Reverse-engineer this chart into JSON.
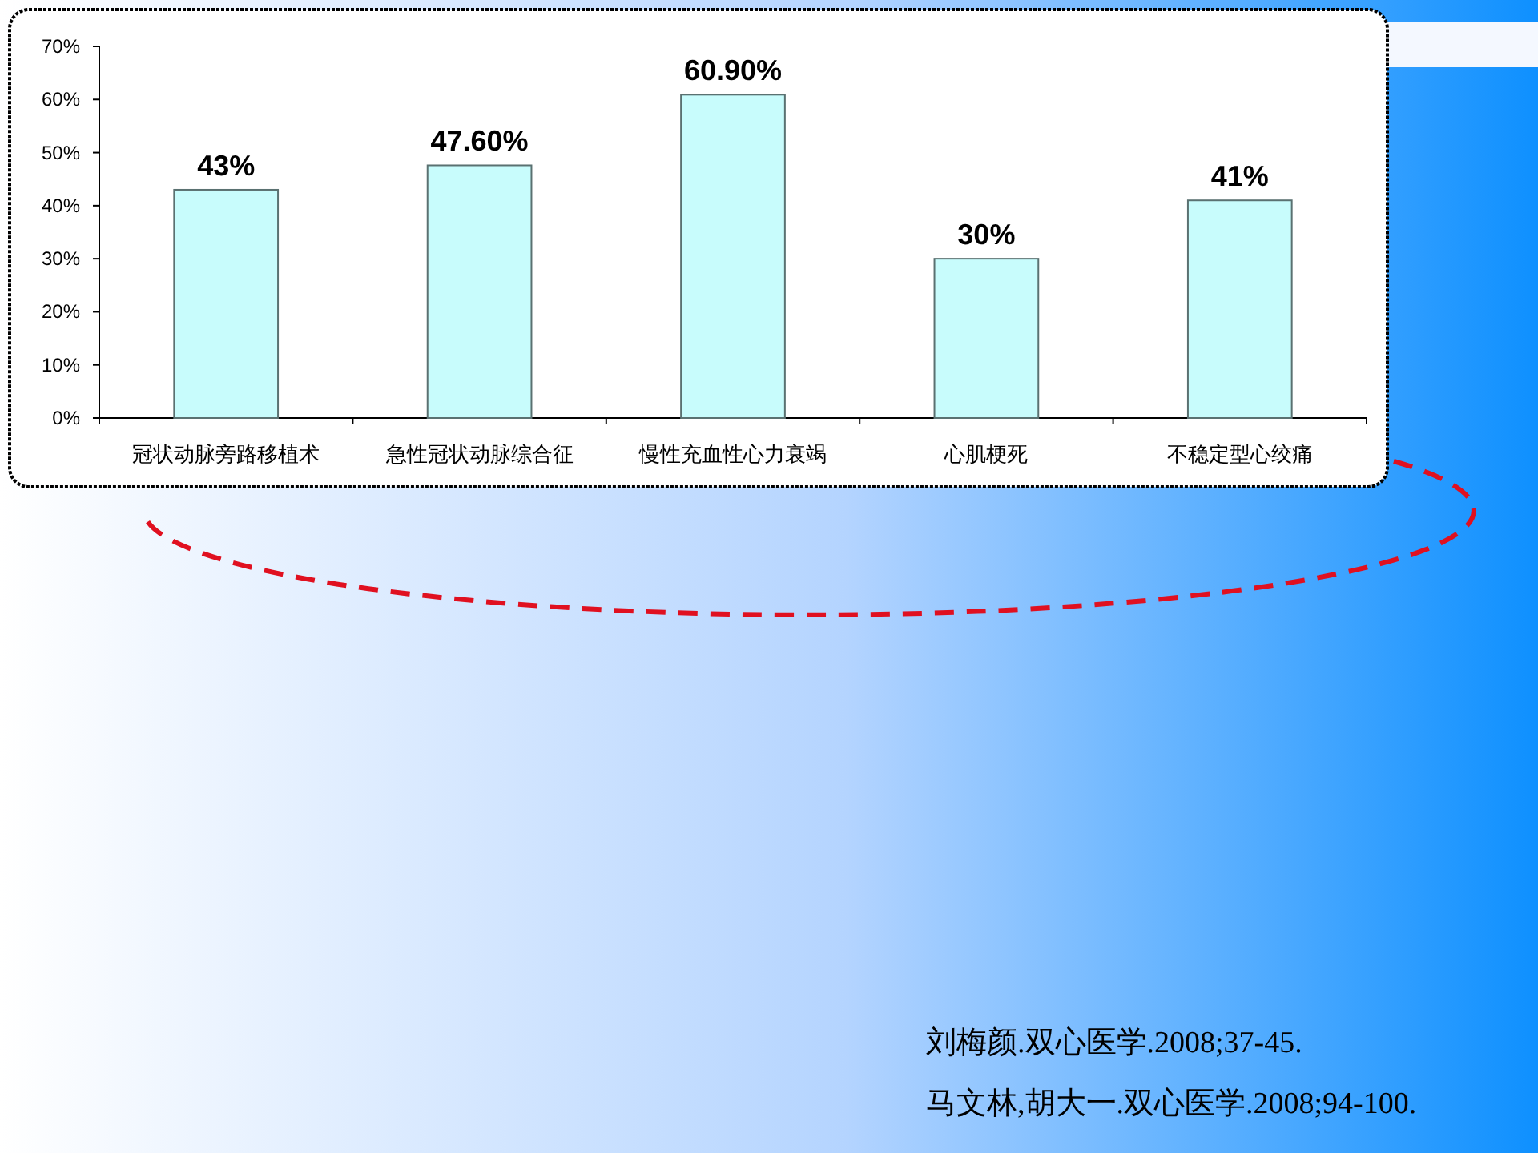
{
  "chart_data": {
    "type": "bar",
    "categories": [
      "冠状动脉旁路移植术",
      "急性冠状动脉综合征",
      "慢性充血性心力衰竭",
      "心肌梗死",
      "不稳定型心绞痛"
    ],
    "values": [
      43,
      47.6,
      60.9,
      30,
      41
    ],
    "value_labels": [
      "43%",
      "47.60%",
      "60.90%",
      "30%",
      "41%"
    ],
    "color": "#c8fcfc",
    "ylim": [
      0,
      70
    ],
    "yticks": [
      {
        "value": 0,
        "label": "0%"
      },
      {
        "value": 10,
        "label": "10%"
      },
      {
        "value": 20,
        "label": "20%"
      },
      {
        "value": 30,
        "label": "30%"
      },
      {
        "value": 40,
        "label": "40%"
      },
      {
        "value": 50,
        "label": "50%"
      },
      {
        "value": 60,
        "label": "60%"
      },
      {
        "value": 70,
        "label": "70%"
      }
    ],
    "grid": false,
    "annotations": [
      "刘梅颜.双心医学.2008;37-45.",
      "马文林,胡大一.双心医学.2008;94-100."
    ]
  }
}
